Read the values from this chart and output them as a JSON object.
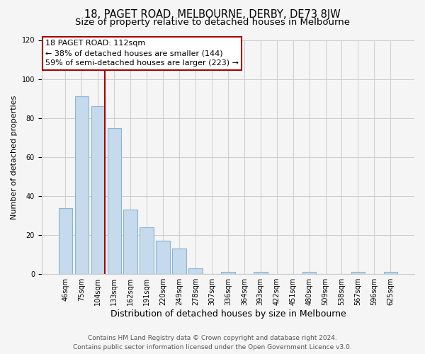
{
  "title": "18, PAGET ROAD, MELBOURNE, DERBY, DE73 8JW",
  "subtitle": "Size of property relative to detached houses in Melbourne",
  "bar_labels": [
    "46sqm",
    "75sqm",
    "104sqm",
    "133sqm",
    "162sqm",
    "191sqm",
    "220sqm",
    "249sqm",
    "278sqm",
    "307sqm",
    "336sqm",
    "364sqm",
    "393sqm",
    "422sqm",
    "451sqm",
    "480sqm",
    "509sqm",
    "538sqm",
    "567sqm",
    "596sqm",
    "625sqm"
  ],
  "bar_values": [
    34,
    91,
    86,
    75,
    33,
    24,
    17,
    13,
    3,
    0,
    1,
    0,
    1,
    0,
    0,
    1,
    0,
    0,
    1,
    0,
    1
  ],
  "bar_color": "#c5daec",
  "bar_edge_color": "#8ab4d4",
  "vline_color": "#aa0000",
  "vline_x_idx": 2,
  "ylim": [
    0,
    120
  ],
  "yticks": [
    0,
    20,
    40,
    60,
    80,
    100,
    120
  ],
  "xlabel": "Distribution of detached houses by size in Melbourne",
  "ylabel": "Number of detached properties",
  "annotation_title": "18 PAGET ROAD: 112sqm",
  "annotation_line1": "← 38% of detached houses are smaller (144)",
  "annotation_line2": "59% of semi-detached houses are larger (223) →",
  "footer_line1": "Contains HM Land Registry data © Crown copyright and database right 2024.",
  "footer_line2": "Contains public sector information licensed under the Open Government Licence v3.0.",
  "background_color": "#f5f5f5",
  "grid_color": "#cccccc",
  "title_fontsize": 10.5,
  "subtitle_fontsize": 9.5,
  "xlabel_fontsize": 9,
  "ylabel_fontsize": 8,
  "tick_fontsize": 7,
  "annotation_fontsize": 8,
  "footer_fontsize": 6.5
}
